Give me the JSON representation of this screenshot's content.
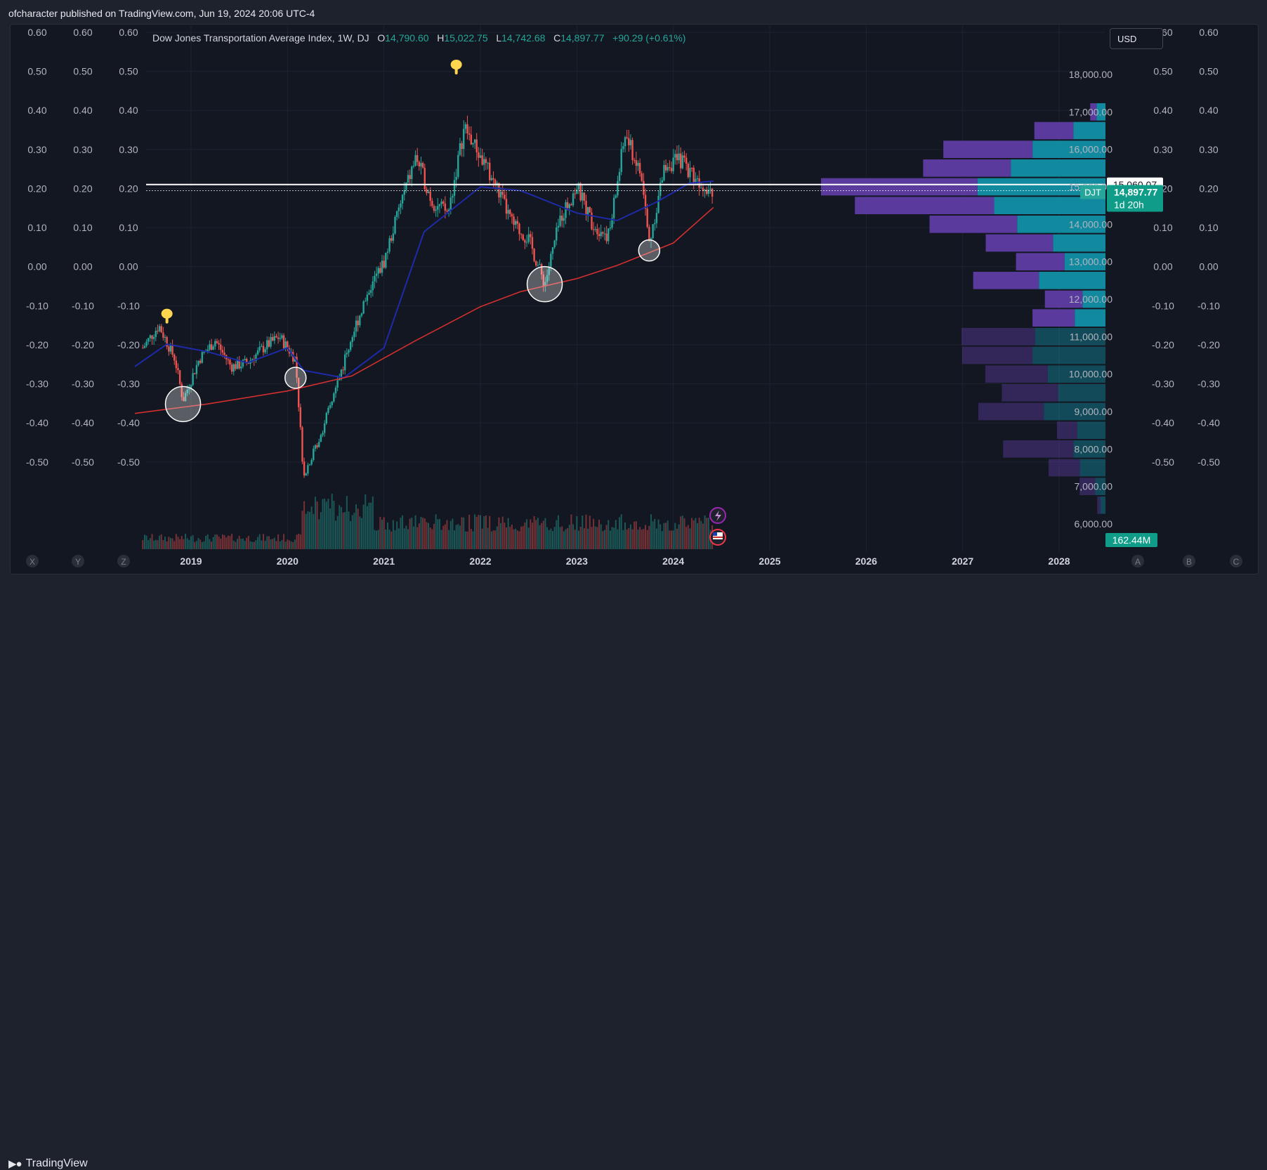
{
  "header": {
    "published": "ofcharacter published on TradingView.com, Jun 19, 2024 20:06 UTC-4"
  },
  "legend": {
    "title": "Dow Jones Transportation Average Index, 1W, DJ",
    "o_label": "O",
    "o_value": "14,790.60",
    "h_label": "H",
    "h_value": "15,022.75",
    "l_label": "L",
    "l_value": "14,742.68",
    "c_label": "C",
    "c_value": "14,897.77",
    "change": "+90.29 (+0.61%)"
  },
  "currency_button": "USD",
  "footer": {
    "brand": "TradingView"
  },
  "corner_buttons": [
    "X",
    "Y",
    "Z",
    "A",
    "B",
    "C"
  ],
  "price_badges": {
    "white_line": "15,060.07",
    "ticker": "DJT",
    "last_price": "14,897.77",
    "countdown": "1d 20h",
    "volume": "162.44M"
  },
  "colors": {
    "background": "#131722",
    "up": "#26a69a",
    "down": "#ef5350",
    "ma_fast": "#1e2aa8",
    "ma_slow": "#d32f2f",
    "profile_purple": "#5b3a9e",
    "profile_cyan": "#11899e",
    "annotation": "#ffd54f"
  },
  "icons": [
    "pointing-hand-icon",
    "lightning-icon",
    "us-flag-icon",
    "tradingview-logo-icon"
  ],
  "chart_data": {
    "type": "candlestick",
    "timeframe": "1W",
    "x_range": [
      "2018-06",
      "2028-06"
    ],
    "x_ticks": [
      "2019",
      "2020",
      "2021",
      "2022",
      "2023",
      "2024",
      "2025",
      "2026",
      "2027",
      "2028"
    ],
    "y_left_ticks": [
      "0.60",
      "0.50",
      "0.40",
      "0.30",
      "0.20",
      "0.10",
      "0.00",
      "-0.10",
      "-0.20",
      "-0.30",
      "-0.40",
      "-0.50"
    ],
    "y_left_range": [
      -0.6,
      0.64
    ],
    "y_right_ticks": [
      "18,000.00",
      "17,000.00",
      "16,000.00",
      "15,000.00",
      "14,000.00",
      "13,000.00",
      "12,000.00",
      "11,000.00",
      "10,000.00",
      "9,000.00",
      "8,000.00",
      "7,000.00",
      "6,000.00"
    ],
    "y_right_range": [
      5700,
      18400
    ],
    "price_keypoints": [
      [
        "2018-07",
        10700
      ],
      [
        "2018-09",
        11300
      ],
      [
        "2018-11",
        10400
      ],
      [
        "2018-12",
        9300
      ],
      [
        "2019-02",
        10400
      ],
      [
        "2019-04",
        10900
      ],
      [
        "2019-06",
        10200
      ],
      [
        "2019-08",
        10300
      ],
      [
        "2019-10",
        10700
      ],
      [
        "2019-12",
        11000
      ],
      [
        "2020-02",
        10400
      ],
      [
        "2020-03",
        7300
      ],
      [
        "2020-05",
        8300
      ],
      [
        "2020-07",
        9600
      ],
      [
        "2020-09",
        11000
      ],
      [
        "2020-11",
        12200
      ],
      [
        "2021-01",
        13000
      ],
      [
        "2021-03",
        14500
      ],
      [
        "2021-05",
        15800
      ],
      [
        "2021-07",
        14600
      ],
      [
        "2021-09",
        14300
      ],
      [
        "2021-11",
        16600
      ],
      [
        "2022-01",
        15800
      ],
      [
        "2022-03",
        15000
      ],
      [
        "2022-05",
        14000
      ],
      [
        "2022-07",
        13600
      ],
      [
        "2022-09",
        12400
      ],
      [
        "2022-11",
        14200
      ],
      [
        "2023-01",
        15000
      ],
      [
        "2023-03",
        14000
      ],
      [
        "2023-05",
        13700
      ],
      [
        "2023-07",
        16400
      ],
      [
        "2023-09",
        15300
      ],
      [
        "2023-10",
        13500
      ],
      [
        "2023-12",
        15600
      ],
      [
        "2024-02",
        15700
      ],
      [
        "2024-04",
        15200
      ],
      [
        "2024-06",
        14898
      ]
    ],
    "ma_fast_keypoints": [
      [
        "2018-06",
        10200
      ],
      [
        "2018-10",
        10800
      ],
      [
        "2019-03",
        10600
      ],
      [
        "2019-08",
        10300
      ],
      [
        "2020-01",
        10700
      ],
      [
        "2020-03",
        10100
      ],
      [
        "2020-08",
        9900
      ],
      [
        "2021-01",
        10700
      ],
      [
        "2021-06",
        13800
      ],
      [
        "2022-01",
        15000
      ],
      [
        "2022-06",
        14900
      ],
      [
        "2023-01",
        14300
      ],
      [
        "2023-06",
        14100
      ],
      [
        "2023-11",
        14600
      ],
      [
        "2024-03",
        15100
      ],
      [
        "2024-06",
        15150
      ]
    ],
    "ma_slow_keypoints": [
      [
        "2018-06",
        8950
      ],
      [
        "2019-03",
        9200
      ],
      [
        "2020-01",
        9550
      ],
      [
        "2020-09",
        9950
      ],
      [
        "2021-05",
        10900
      ],
      [
        "2022-01",
        11800
      ],
      [
        "2022-06",
        12200
      ],
      [
        "2023-01",
        12550
      ],
      [
        "2023-06",
        12900
      ],
      [
        "2024-01",
        13500
      ],
      [
        "2024-06",
        14450
      ]
    ],
    "horizontal_lines": [
      15060.07,
      14897.77
    ],
    "annotations": [
      {
        "type": "pointing-hand",
        "date": "2018-10",
        "price": 11500
      },
      {
        "type": "pointing-hand",
        "date": "2021-10",
        "price": 18150
      },
      {
        "type": "circle",
        "date": "2018-12",
        "price": 9200,
        "size": "large"
      },
      {
        "type": "circle",
        "date": "2020-02",
        "price": 9900,
        "size": "medium"
      },
      {
        "type": "circle",
        "date": "2022-09",
        "price": 12400,
        "size": "large"
      },
      {
        "type": "circle",
        "date": "2023-10",
        "price": 13300,
        "size": "medium"
      }
    ],
    "volume_profile": [
      {
        "price": 17000,
        "up": 0.07,
        "down": 0.04
      },
      {
        "price": 16500,
        "up": 0.25,
        "down": 0.25
      },
      {
        "price": 16000,
        "up": 0.57,
        "down": 0.57
      },
      {
        "price": 15500,
        "up": 0.74,
        "down": 0.56
      },
      {
        "price": 15000,
        "up": 1.0,
        "down": 1.0
      },
      {
        "price": 14500,
        "up": 0.87,
        "down": 0.89
      },
      {
        "price": 14000,
        "up": 0.69,
        "down": 0.56
      },
      {
        "price": 13500,
        "up": 0.41,
        "down": 0.43
      },
      {
        "price": 13000,
        "up": 0.32,
        "down": 0.31
      },
      {
        "price": 12500,
        "up": 0.52,
        "down": 0.42
      },
      {
        "price": 12000,
        "up": 0.18,
        "down": 0.24
      },
      {
        "price": 11500,
        "up": 0.24,
        "down": 0.27
      },
      {
        "price": 11000,
        "up": 0.55,
        "down": 0.47
      },
      {
        "price": 10500,
        "up": 0.57,
        "down": 0.45
      },
      {
        "price": 10000,
        "up": 0.45,
        "down": 0.4
      },
      {
        "price": 9500,
        "up": 0.37,
        "down": 0.36
      },
      {
        "price": 9000,
        "up": 0.48,
        "down": 0.42
      },
      {
        "price": 8500,
        "up": 0.22,
        "down": 0.13
      },
      {
        "price": 8000,
        "up": 0.25,
        "down": 0.45
      },
      {
        "price": 7500,
        "up": 0.2,
        "down": 0.2
      },
      {
        "price": 7000,
        "up": 0.08,
        "down": 0.1
      },
      {
        "price": 6500,
        "up": 0.04,
        "down": 0.02
      }
    ],
    "volume_last": "162.44M"
  }
}
